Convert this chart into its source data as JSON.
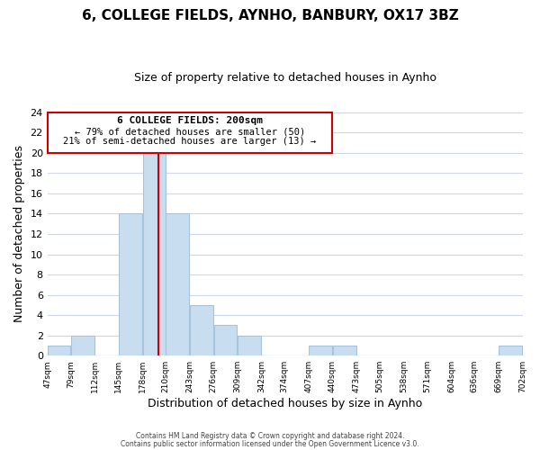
{
  "title": "6, COLLEGE FIELDS, AYNHO, BANBURY, OX17 3BZ",
  "subtitle": "Size of property relative to detached houses in Aynho",
  "xlabel": "Distribution of detached houses by size in Aynho",
  "ylabel": "Number of detached properties",
  "bin_edges": [
    47,
    79,
    112,
    145,
    178,
    210,
    243,
    276,
    309,
    342,
    374,
    407,
    440,
    473,
    505,
    538,
    571,
    604,
    636,
    669,
    702
  ],
  "bin_labels": [
    "47sqm",
    "79sqm",
    "112sqm",
    "145sqm",
    "178sqm",
    "210sqm",
    "243sqm",
    "276sqm",
    "309sqm",
    "342sqm",
    "374sqm",
    "407sqm",
    "440sqm",
    "473sqm",
    "505sqm",
    "538sqm",
    "571sqm",
    "604sqm",
    "636sqm",
    "669sqm",
    "702sqm"
  ],
  "counts": [
    1,
    2,
    0,
    14,
    20,
    14,
    5,
    3,
    2,
    0,
    0,
    1,
    1,
    0,
    0,
    0,
    0,
    0,
    0,
    1
  ],
  "bar_color": "#c9ddf0",
  "bar_edge_color": "#a8c4dc",
  "property_line_x": 200,
  "property_line_color": "#cc0000",
  "ylim": [
    0,
    24
  ],
  "yticks": [
    0,
    2,
    4,
    6,
    8,
    10,
    12,
    14,
    16,
    18,
    20,
    22,
    24
  ],
  "annotation_text_line1": "6 COLLEGE FIELDS: 200sqm",
  "annotation_text_line2": "← 79% of detached houses are smaller (50)",
  "annotation_text_line3": "21% of semi-detached houses are larger (13) →",
  "annotation_box_color": "#ffffff",
  "annotation_box_edge": "#cc0000",
  "footer_line1": "Contains HM Land Registry data © Crown copyright and database right 2024.",
  "footer_line2": "Contains public sector information licensed under the Open Government Licence v3.0.",
  "background_color": "#ffffff",
  "grid_color": "#d0d8e8",
  "title_fontsize": 11,
  "subtitle_fontsize": 9
}
